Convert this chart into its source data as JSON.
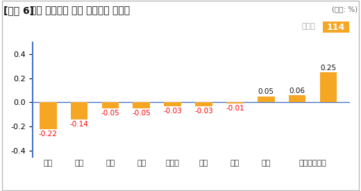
{
  "title_bracket": "[그림 6]",
  "title_main": " 서울 주요지역 주간 전세가격 변동률",
  "unit_label": "(단위: %)",
  "categories": [
    "강동",
    "성북",
    "구로",
    "성동",
    "동대문",
    "관악",
    "강서",
    "양천",
    "서대문영등포"
  ],
  "values": [
    -0.22,
    -0.14,
    -0.05,
    -0.05,
    -0.03,
    -0.03,
    -0.01,
    0.05,
    0.06,
    0.25
  ],
  "tick_positions": [
    0,
    1,
    2,
    3,
    4,
    5,
    6,
    7,
    8.5
  ],
  "bar_color": "#F5A623",
  "negative_label_color": "#FF0000",
  "positive_label_color": "#111111",
  "ylim": [
    -0.45,
    0.5
  ],
  "yticks": [
    -0.4,
    -0.2,
    0.0,
    0.2,
    0.4
  ],
  "background_color": "#FFFFFF",
  "border_color": "#BBBBBB",
  "logo_text": "부동산",
  "logo_114": "114",
  "logo_bg": "#F5A623",
  "logo_text_color": "#AAAAAA",
  "spine_color": "#4472C4",
  "title_fontsize": 10,
  "tick_fontsize": 8,
  "label_fontsize": 7.5,
  "unit_fontsize": 7.5
}
